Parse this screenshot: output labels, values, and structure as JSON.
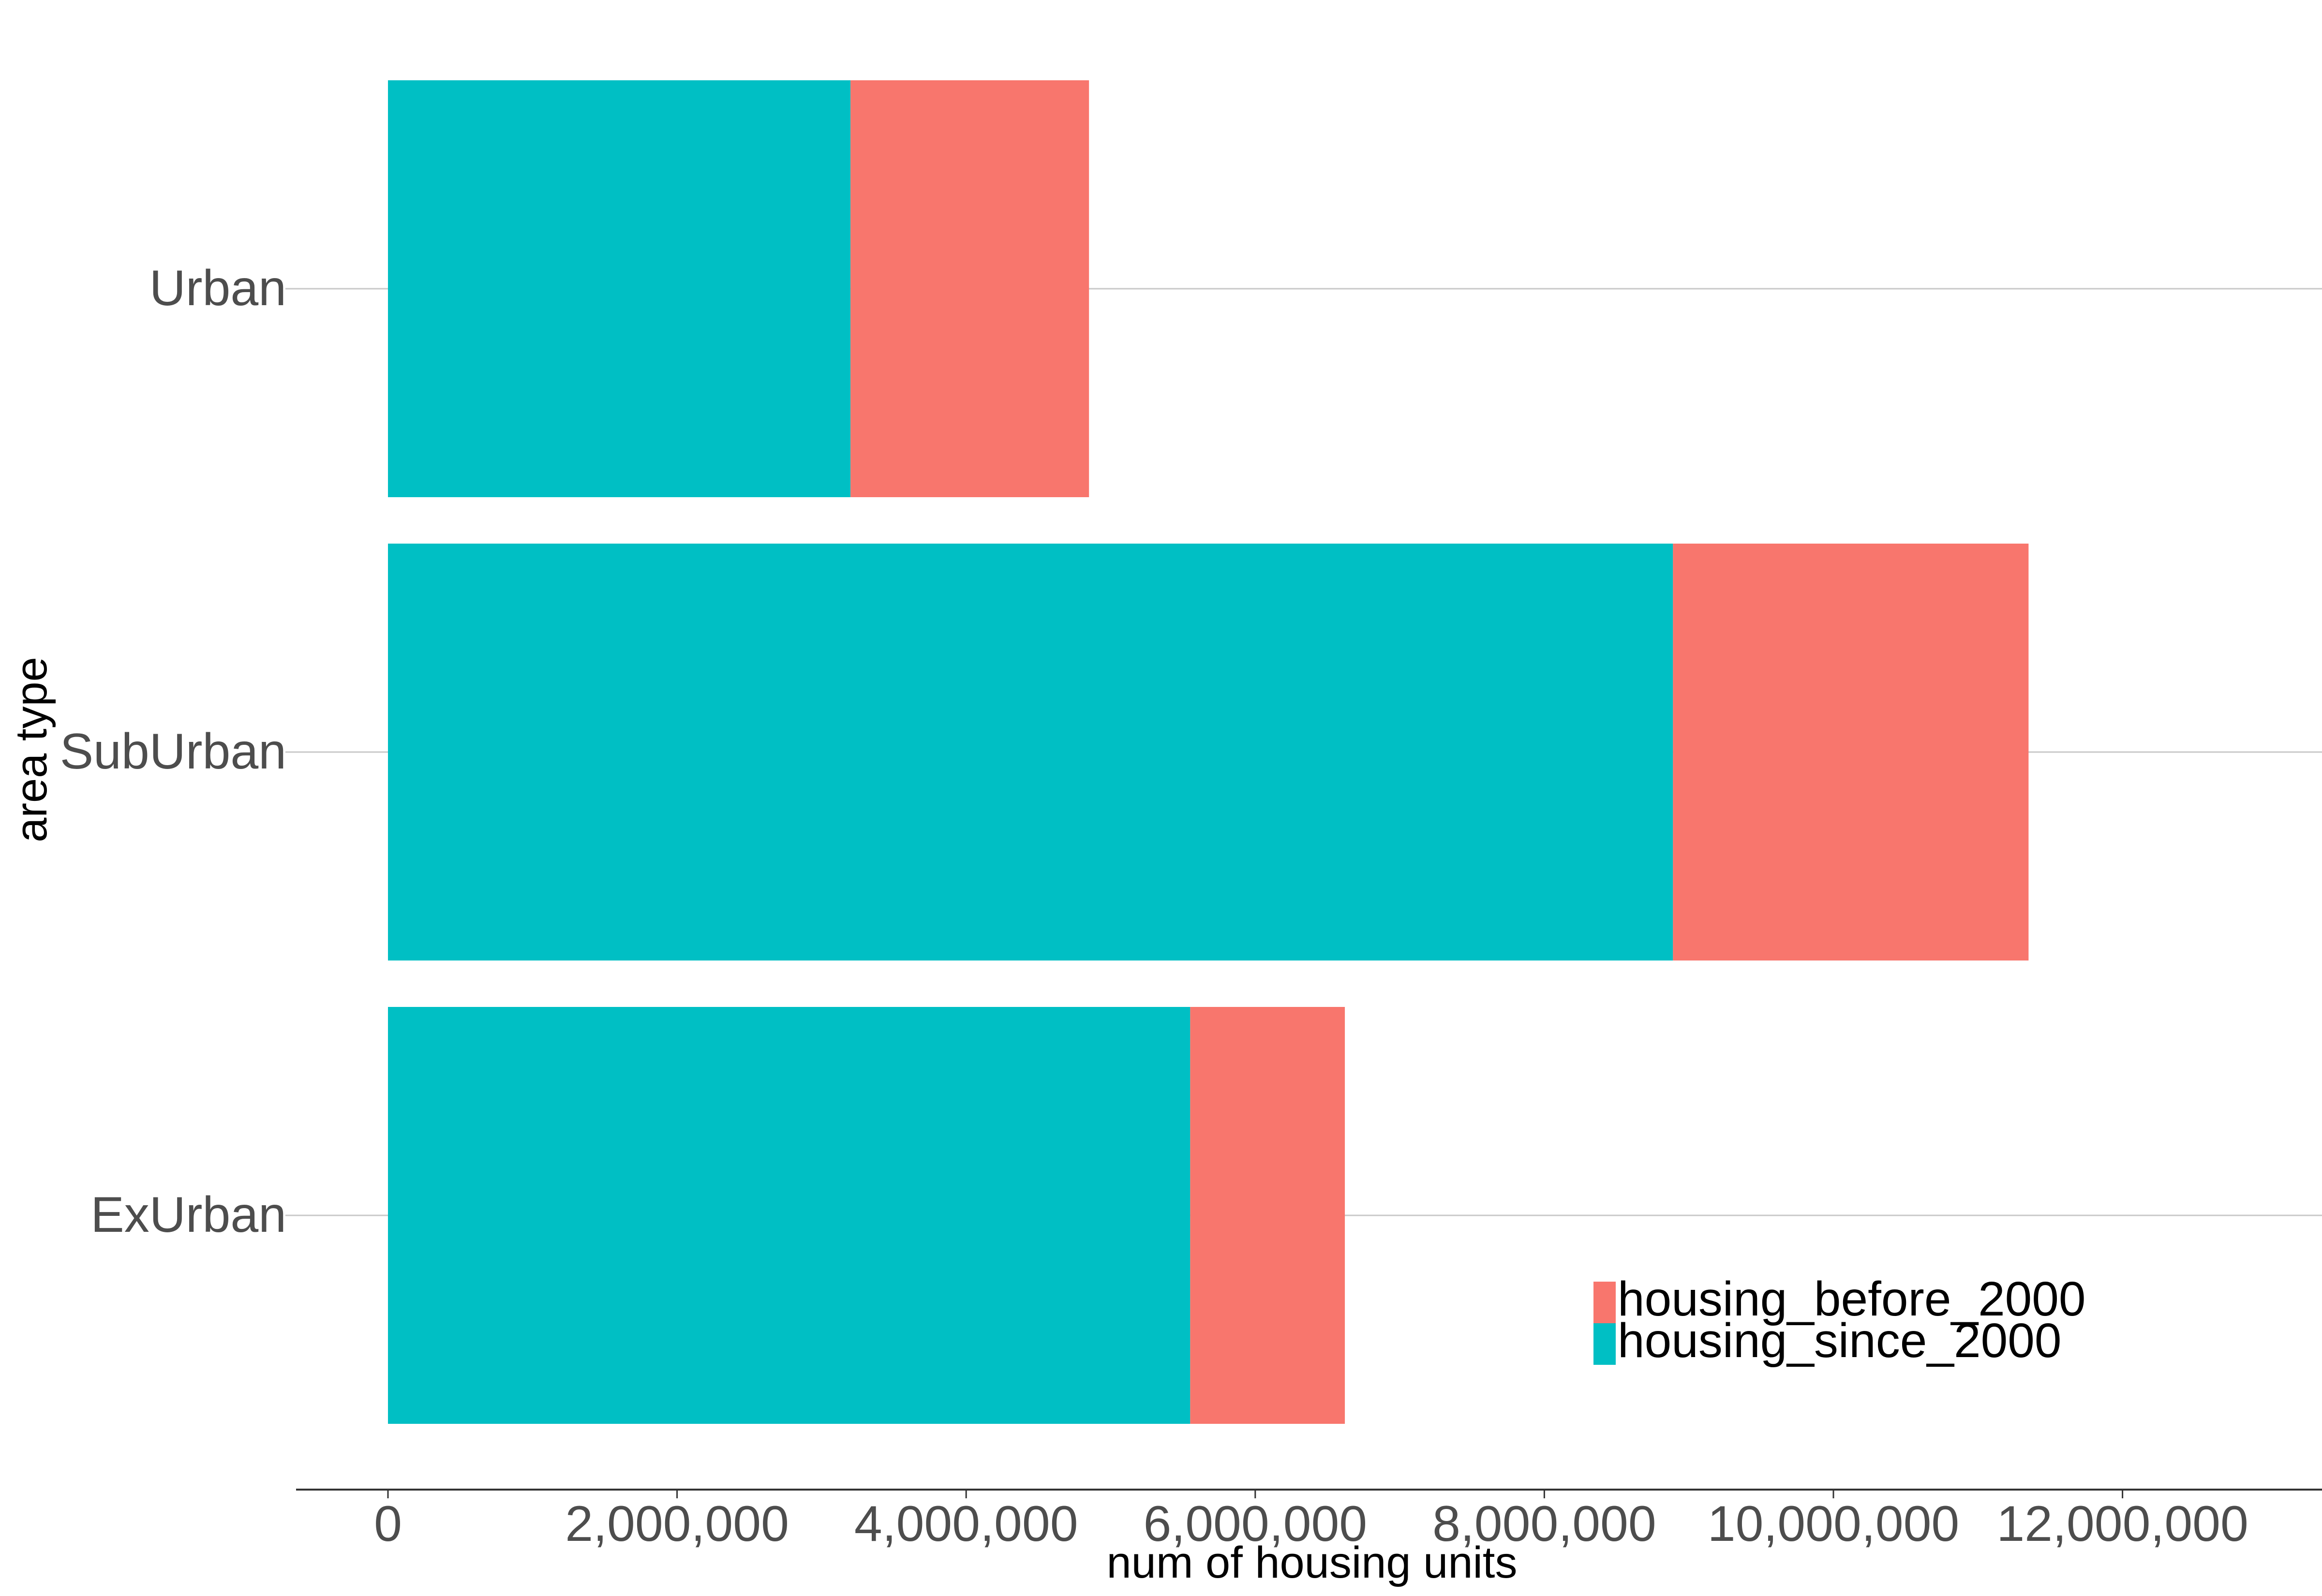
{
  "chart_data": {
    "type": "bar",
    "orientation": "horizontal",
    "stacked": true,
    "xlabel": "num of housing units",
    "ylabel": "area type",
    "categories": [
      "Urban",
      "SubUrban",
      "ExUrban"
    ],
    "series": [
      {
        "name": "housing_since_2000",
        "color": "#00BFC4",
        "values": [
          3200000,
          8890000,
          5550000
        ]
      },
      {
        "name": "housing_before_2000",
        "color": "#F8766D",
        "values": [
          1650000,
          2460000,
          1070000
        ]
      }
    ],
    "xlim": [
      -640000,
      13330000
    ],
    "x_ticks": [
      0,
      2000000,
      4000000,
      6000000,
      8000000,
      10000000,
      12000000
    ],
    "x_tick_labels": [
      "0",
      "2,000,000",
      "4,000,000",
      "6,000,000",
      "8,000,000",
      "10,000,000",
      "12,000,000"
    ],
    "legend": {
      "position": "bottom-right",
      "entries": [
        {
          "label": "housing_before_2000",
          "color": "#F8766D"
        },
        {
          "label": "housing_since_2000",
          "color": "#00BFC4"
        }
      ]
    },
    "grid": {
      "major_horizontal": true,
      "vertical": false
    },
    "axis_line_color": "#333333",
    "grid_color": "#C8C8C8",
    "tick_label_color": "#4D4D4D",
    "axis_title_color": "#000000"
  }
}
